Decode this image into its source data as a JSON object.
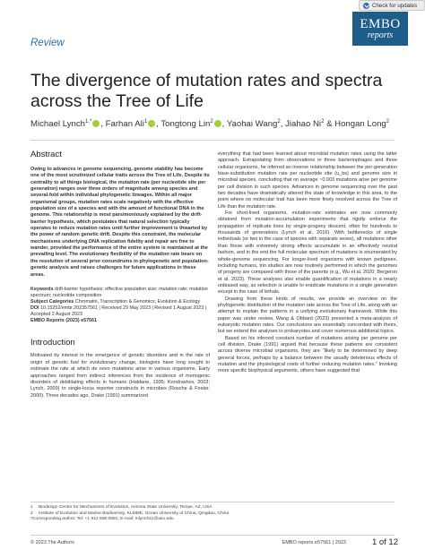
{
  "check_updates": {
    "label": "Check for updates"
  },
  "logo": {
    "line1": "EMBO",
    "line2": "reports"
  },
  "section_label": "Review",
  "title": "The divergence of mutation rates and spectra across the Tree of Life",
  "authors": [
    {
      "name": "Michael Lynch",
      "sup": "1,*",
      "orcid": true,
      "sep": ", "
    },
    {
      "name": "Farhan Ali",
      "sup": "1",
      "orcid": true,
      "sep": ", "
    },
    {
      "name": "Tongtong Lin",
      "sup": "2",
      "orcid": true,
      "sep": ", "
    },
    {
      "name": "Yaohai Wang",
      "sup": "2",
      "orcid": false,
      "sep": ", "
    },
    {
      "name": "Jiahao Ni",
      "sup": "2",
      "orcid": false,
      "sep": " & "
    },
    {
      "name": "Hongan Long",
      "sup": "2",
      "orcid": false,
      "sep": ""
    }
  ],
  "abstract": {
    "heading": "Abstract",
    "text": "Owing to advances in genome sequencing, genome stability has become one of the most scrutinized cellular traits across the Tree of Life. Despite its centrality to all things biological, the mutation rate (per nucleotide site per generation) ranges over three orders of magnitude among species and several-fold within individual phylogenetic lineages. Within all major organismal groups, mutation rates scale negatively with the effective population size of a species and with the amount of functional DNA in the genome. This relationship is most parsimoniously explained by the drift-barrier hypothesis, which postulates that natural selection typically operates to reduce mutation rates until further improvement is thwarted by the power of random genetic drift. Despite this constraint, the molecular mechanisms underlying DNA replication fidelity and repair are free to wander, provided the performance of the entire system is maintained at the prevailing level. The evolutionary flexibility of the mutation rate bears on the resolution of several prior conundrums in phylogenetic and population-genetic analysis and raises challenges for future applications in these areas."
  },
  "meta": {
    "keywords_label": "Keywords",
    "keywords": "drift-barrier hypothesis; effective population size; mutation rate; mutation spectrum; nucleotide composition",
    "subject_label": "Subject Categories",
    "subject": "Chromatin, Transcription & Genomics; Evolution & Ecology",
    "doi_label": "DOI",
    "doi": "10.15252/embr.202357561 | Received 29 May 2023 | Revised 1 August 2023 | Accepted 2 August 2023",
    "journal_label": "EMBO Reports (2023) e57561"
  },
  "intro": {
    "heading": "Introduction",
    "text": "Motivated by interest in the emergence of genetic disorders and in the rate of origin of genetic fuel for evolutionary change, biologists have long sought to estimate the rate at which de novo mutations arise in various organisms. Early approaches ranged from indirect inferences from the incidence of monogenic disorders of debilitating effects in humans (Haldane, 1935; Kondrashov, 2003; Lynch, 2009) to single-locus reporter constructs in microbes (Rosche & Foster, 2000). Three decades ago, Drake (1991) summarized"
  },
  "right_column": [
    "everything that had been learned about microbial mutation rates using the latter approach. Extrapolating from observations in three bacteriophages and three cellular organisms, he inferred an inverse relationship between the per-generation base-substitution mutation rate per nucleotide site (u_bs) and genome size in microbial species, concluding that on average ~0.003 mutations arise per genome per cell division in such species. Advances in genome sequencing over the past two decades have dramatically altered the state of knowledge in this area, to the point where no molecular trait has been more finely resolved across the Tree of Life than the mutation rate.",
    "For short-lived organisms, mutation-rate estimates are now commonly obtained from mutation-accumulation experiments that rigidly enforce the propagation of replicate lines by single-progeny descent, often for hundreds to thousands of generations (Lynch et al, 2016). With bottlenecks of single individuals (or two in the case of species with separate sexes), all mutations other than those with extremely strong effects accumulate in an effectively neutral fashion, and in the end the full molecular spectrum of mutations is enumerated by whole-genome sequencing. For longer-lived organisms with known pedigrees, including humans, trio studies are now routinely performed in which the genomes of progeny are compared with those of the parents (e.g., Wu et al, 2020; Bergeron et al, 2023). These analyses also enable quantification of mutations in a nearly unbiased way, as selection is unable to eradicate mutations in a single generation except in the case of lethals.",
    "Drawing from these kinds of results, we provide an overview on the phylogenetic distribution of the mutation rate across the Tree of Life, along with an attempt to explain the patterns in a unifying evolutionary framework. While this paper was under review, Wang & Obbard (2023) presented a meta-analysis of eukaryotic mutation rates. Our conclusions are essentially concordant with theirs, but we extend the analyses to prokaryotes and cover numerous additional topics.",
    "Based on his inferred constant number of mutations arising per genome per cell division, Drake (1991) argued that because these patterns are consistent across diverse microbial organisms, they are \"likely to be determined by deep general forces, perhaps by a balance between the usually deleterious effects of mutation and the physiological costs of further reducing mutation rates.\" Invoking more specific biophysical arguments, others have suggested that"
  ],
  "footnotes": [
    {
      "num": "1",
      "text": "Biodesign Center for Mechanisms of Evolution, Arizona State University, Tempe, AZ, USA"
    },
    {
      "num": "2",
      "text": "Institute of Evolution and Marine Biodiversity, KLMME, Ocean University of China, Qingdao, China"
    },
    {
      "num": "",
      "text": "*Corresponding author. Tel: +1 812 606 0681; E-mail: mlynch11@asu.edu"
    }
  ],
  "footer": {
    "copyright": "© 2023 The Authors",
    "journal": "EMBO reports   e57561 | 2023",
    "page": "1 of 12"
  },
  "colors": {
    "accent": "#2b6fa7",
    "logo_bg": "#1d5d8a",
    "orcid": "#a6ce39"
  }
}
